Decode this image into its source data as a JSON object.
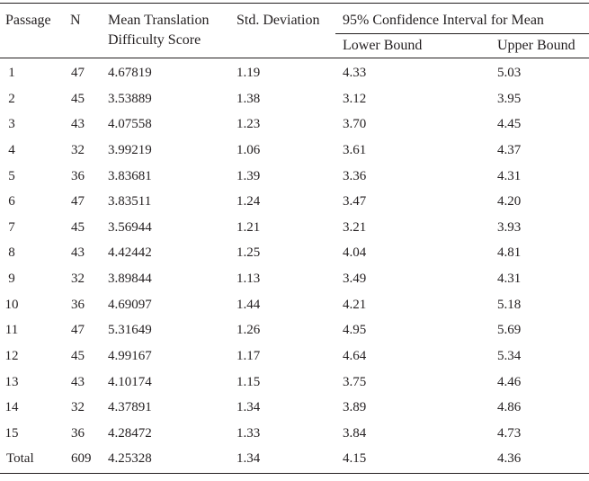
{
  "headers": {
    "passage": "Passage",
    "n": "N",
    "mean_line1": "Mean Translation",
    "mean_line2": "Difficulty Score",
    "std": "Std. Deviation",
    "ci": "95% Confidence Interval for Mean",
    "lower": "Lower Bound",
    "upper": "Upper Bound"
  },
  "rows": [
    {
      "passage": "1",
      "n": "47",
      "mean": "4.67819",
      "std": "1.19",
      "lower": "4.33",
      "upper": "5.03"
    },
    {
      "passage": "2",
      "n": "45",
      "mean": "3.53889",
      "std": "1.38",
      "lower": "3.12",
      "upper": "3.95"
    },
    {
      "passage": "3",
      "n": "43",
      "mean": "4.07558",
      "std": "1.23",
      "lower": "3.70",
      "upper": "4.45"
    },
    {
      "passage": "4",
      "n": "32",
      "mean": "3.99219",
      "std": "1.06",
      "lower": "3.61",
      "upper": "4.37"
    },
    {
      "passage": "5",
      "n": "36",
      "mean": "3.83681",
      "std": "1.39",
      "lower": "3.36",
      "upper": "4.31"
    },
    {
      "passage": "6",
      "n": "47",
      "mean": "3.83511",
      "std": "1.24",
      "lower": "3.47",
      "upper": "4.20"
    },
    {
      "passage": "7",
      "n": "45",
      "mean": "3.56944",
      "std": "1.21",
      "lower": "3.21",
      "upper": "3.93"
    },
    {
      "passage": "8",
      "n": "43",
      "mean": "4.42442",
      "std": "1.25",
      "lower": "4.04",
      "upper": "4.81"
    },
    {
      "passage": "9",
      "n": "32",
      "mean": "3.89844",
      "std": "1.13",
      "lower": "3.49",
      "upper": "4.31"
    },
    {
      "passage": "10",
      "n": "36",
      "mean": "4.69097",
      "std": "1.44",
      "lower": "4.21",
      "upper": "5.18"
    },
    {
      "passage": "11",
      "n": "47",
      "mean": "5.31649",
      "std": "1.26",
      "lower": "4.95",
      "upper": "5.69"
    },
    {
      "passage": "12",
      "n": "45",
      "mean": "4.99167",
      "std": "1.17",
      "lower": "4.64",
      "upper": "5.34"
    },
    {
      "passage": "13",
      "n": "43",
      "mean": "4.10174",
      "std": "1.15",
      "lower": "3.75",
      "upper": "4.46"
    },
    {
      "passage": "14",
      "n": "32",
      "mean": "4.37891",
      "std": "1.34",
      "lower": "3.89",
      "upper": "4.86"
    },
    {
      "passage": "15",
      "n": "36",
      "mean": "4.28472",
      "std": "1.33",
      "lower": "3.84",
      "upper": "4.73"
    }
  ],
  "total": {
    "passage": "Total",
    "n": "609",
    "mean": "4.25328",
    "std": "1.34",
    "lower": "4.15",
    "upper": "4.36"
  }
}
